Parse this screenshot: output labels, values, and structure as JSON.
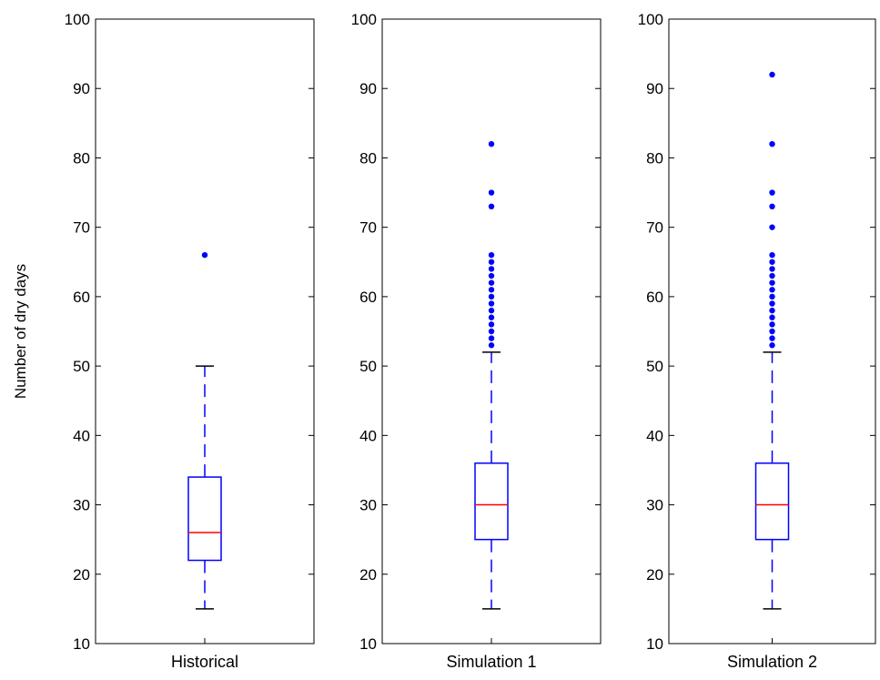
{
  "chart_data": {
    "type": "boxplot",
    "ylabel": "Number of dry days",
    "ylim": [
      10,
      100
    ],
    "yticks": [
      10,
      20,
      30,
      40,
      50,
      60,
      70,
      80,
      90,
      100
    ],
    "grid": false,
    "colors": {
      "box": "#0000ff",
      "median": "#ff0000",
      "outlier": "#0000ff",
      "axes": "#000000"
    },
    "panels": [
      {
        "category": "Historical",
        "box": {
          "whisker_low": 15,
          "q1": 22,
          "median": 26,
          "q3": 34,
          "whisker_high": 50
        },
        "outliers": [
          66
        ]
      },
      {
        "category": "Simulation 1",
        "box": {
          "whisker_low": 15,
          "q1": 25,
          "median": 30,
          "q3": 36,
          "whisker_high": 52
        },
        "outliers": [
          53,
          54,
          55,
          56,
          57,
          58,
          59,
          60,
          61,
          62,
          63,
          64,
          65,
          66,
          73,
          75,
          82
        ]
      },
      {
        "category": "Simulation 2",
        "box": {
          "whisker_low": 15,
          "q1": 25,
          "median": 30,
          "q3": 36,
          "whisker_high": 52
        },
        "outliers": [
          53,
          54,
          55,
          56,
          57,
          58,
          59,
          60,
          61,
          62,
          63,
          64,
          65,
          66,
          70,
          73,
          75,
          82,
          92
        ]
      }
    ]
  }
}
